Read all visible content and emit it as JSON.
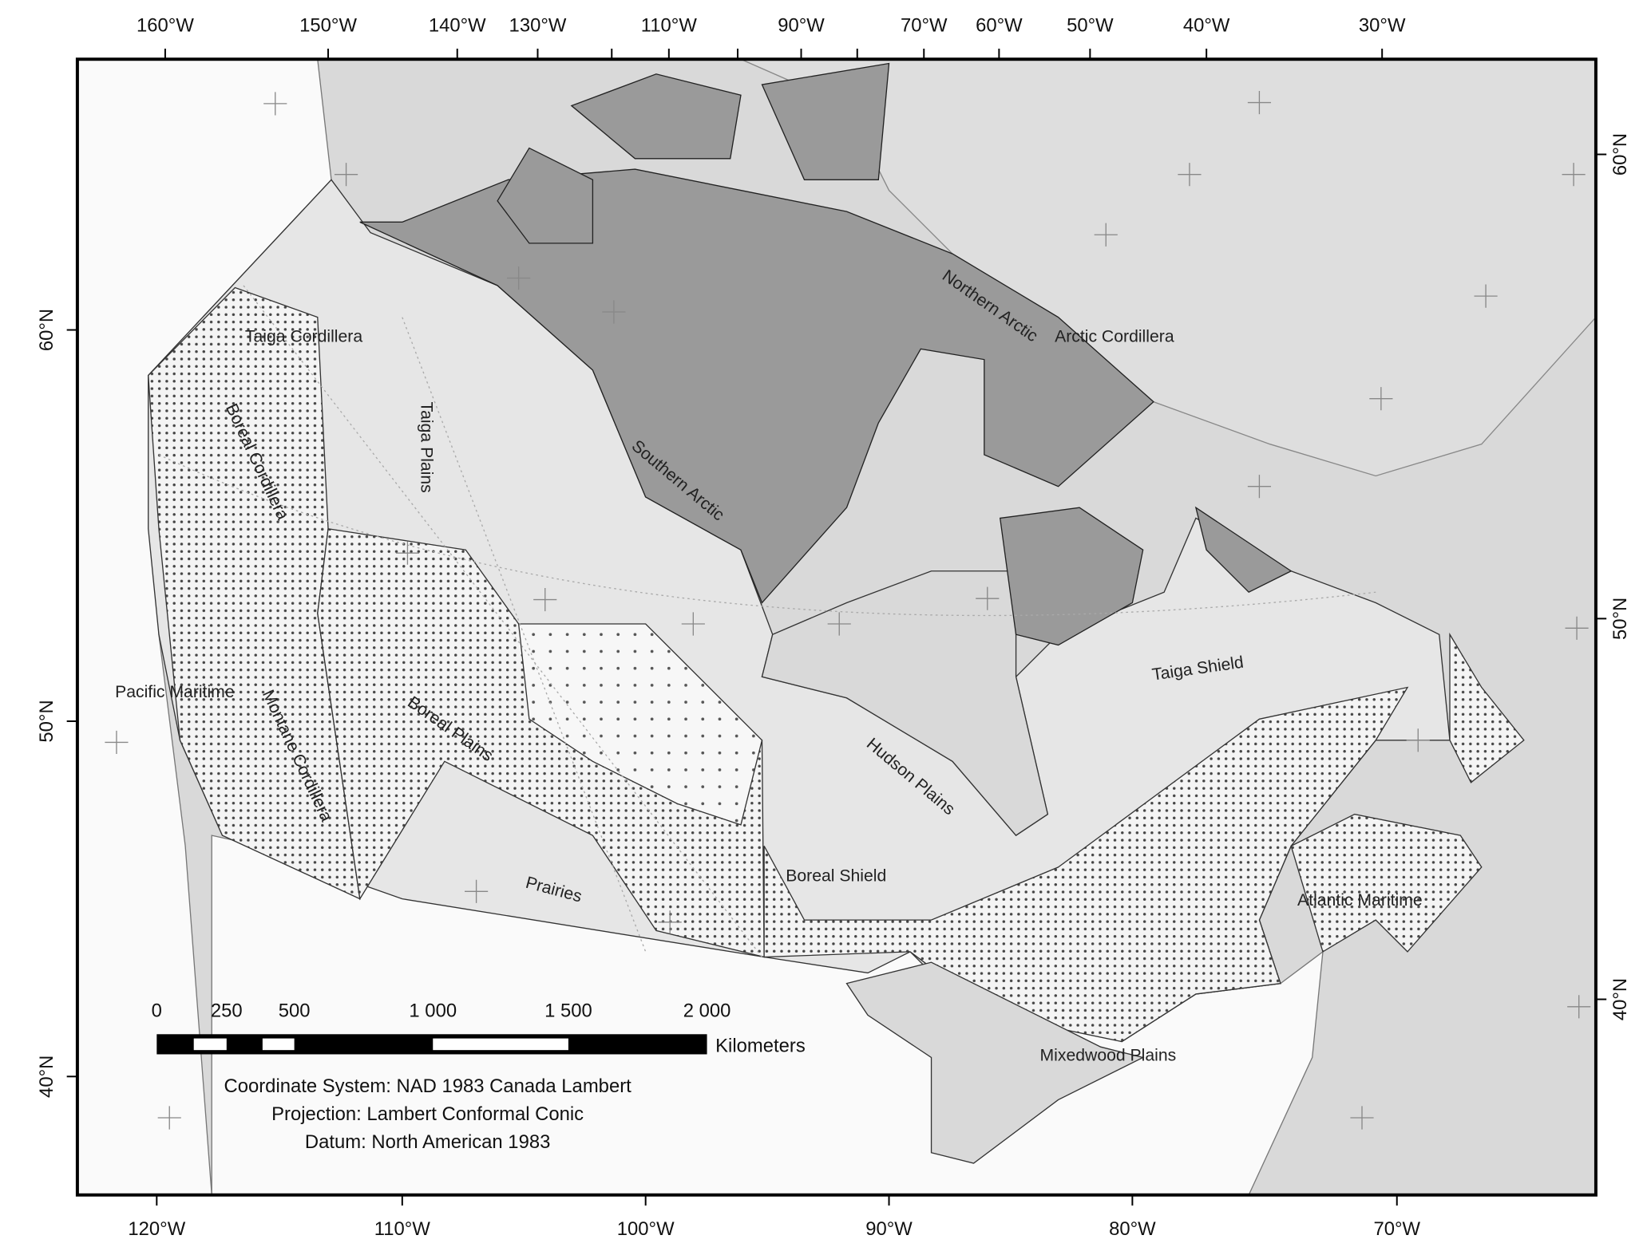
{
  "map": {
    "top_labels": [
      "160°W",
      "150°W",
      "140°W",
      "130°W",
      "110°W",
      "90°W",
      "70°W",
      "60°W",
      "50°W",
      "40°W",
      "30°W"
    ],
    "bottom_labels": [
      "120°W",
      "110°W",
      "100°W",
      "90°W",
      "80°W",
      "70°W"
    ],
    "left_labels": [
      "60°N",
      "50°N",
      "40°N"
    ],
    "right_labels": [
      "60°N",
      "50°N",
      "40°N"
    ],
    "regions": [
      "Taiga Cordillera",
      "Boreal Cordillera",
      "Taiga Plains",
      "Southern Arctic",
      "Northern Arctic",
      "Arctic Cordillera",
      "Taiga Shield",
      "Pacific Maritime",
      "Montane Cordillera",
      "Boreal Plains",
      "Hudson Plains",
      "Boreal Shield",
      "Prairies",
      "Atlantic Maritime",
      "Mixedwood Plains"
    ],
    "scale_bar": {
      "labels": [
        "0",
        "250",
        "500",
        "1 000",
        "1 500",
        "2 000"
      ],
      "unit": "Kilometers"
    },
    "notes": [
      "Coordinate System: NAD 1983 Canada Lambert",
      "Projection: Lambert Conformal Conic",
      "Datum: North American 1983"
    ]
  }
}
